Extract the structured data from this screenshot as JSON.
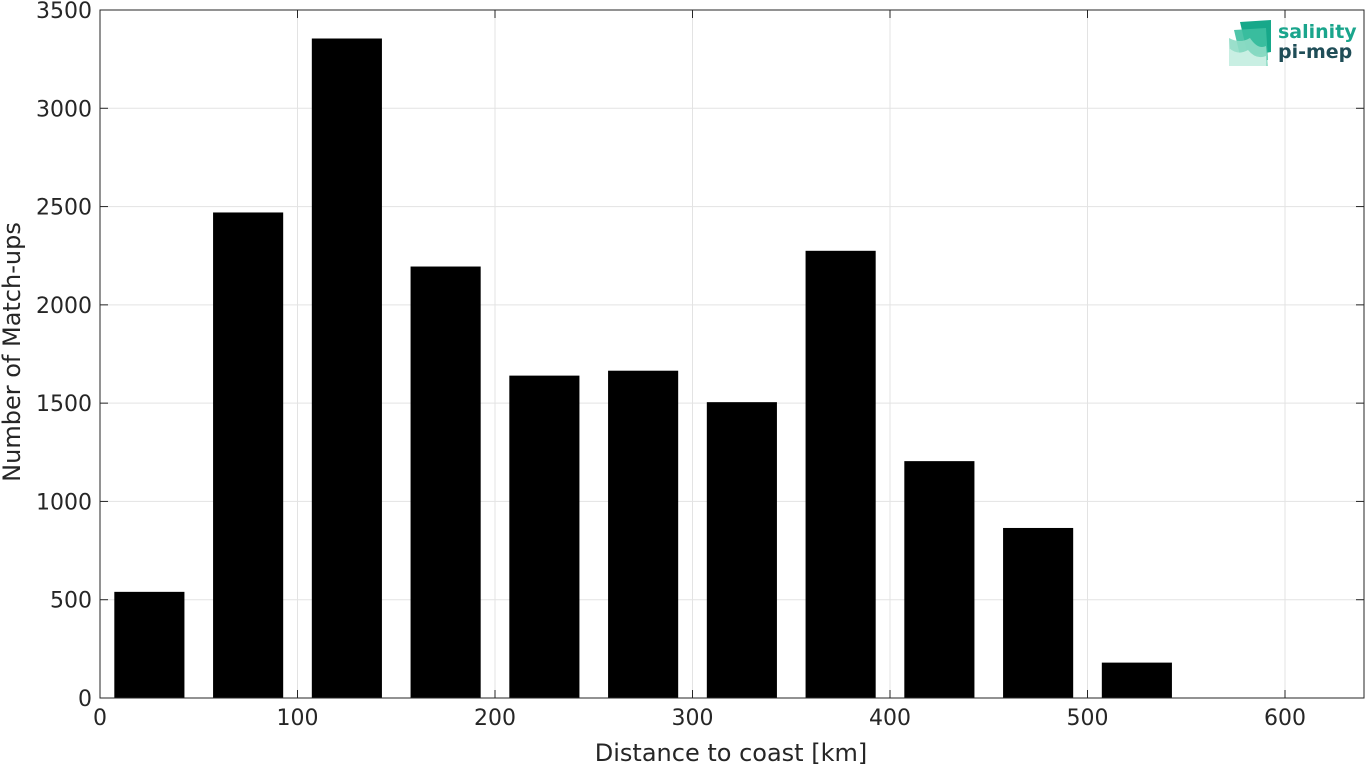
{
  "chart_data": {
    "type": "bar",
    "bin_width": 50,
    "x": [
      25,
      75,
      125,
      175,
      225,
      275,
      325,
      375,
      425,
      475,
      525
    ],
    "values": [
      540,
      2470,
      3355,
      2195,
      1640,
      1665,
      1505,
      2275,
      1205,
      865,
      180
    ],
    "xlabel": "Distance to coast [km]",
    "ylabel": "Number of Match-ups",
    "xlim": [
      0,
      640
    ],
    "ylim": [
      0,
      3500
    ],
    "xticks": [
      0,
      100,
      200,
      300,
      400,
      500,
      600
    ],
    "yticks": [
      0,
      500,
      1000,
      1500,
      2000,
      2500,
      3000,
      3500
    ],
    "grid": true,
    "bar_color": "#000000"
  },
  "logo": {
    "line1": "salinity",
    "line2": "pi-mep",
    "color1": "#1aa58c",
    "color2": "#1f4d57"
  }
}
